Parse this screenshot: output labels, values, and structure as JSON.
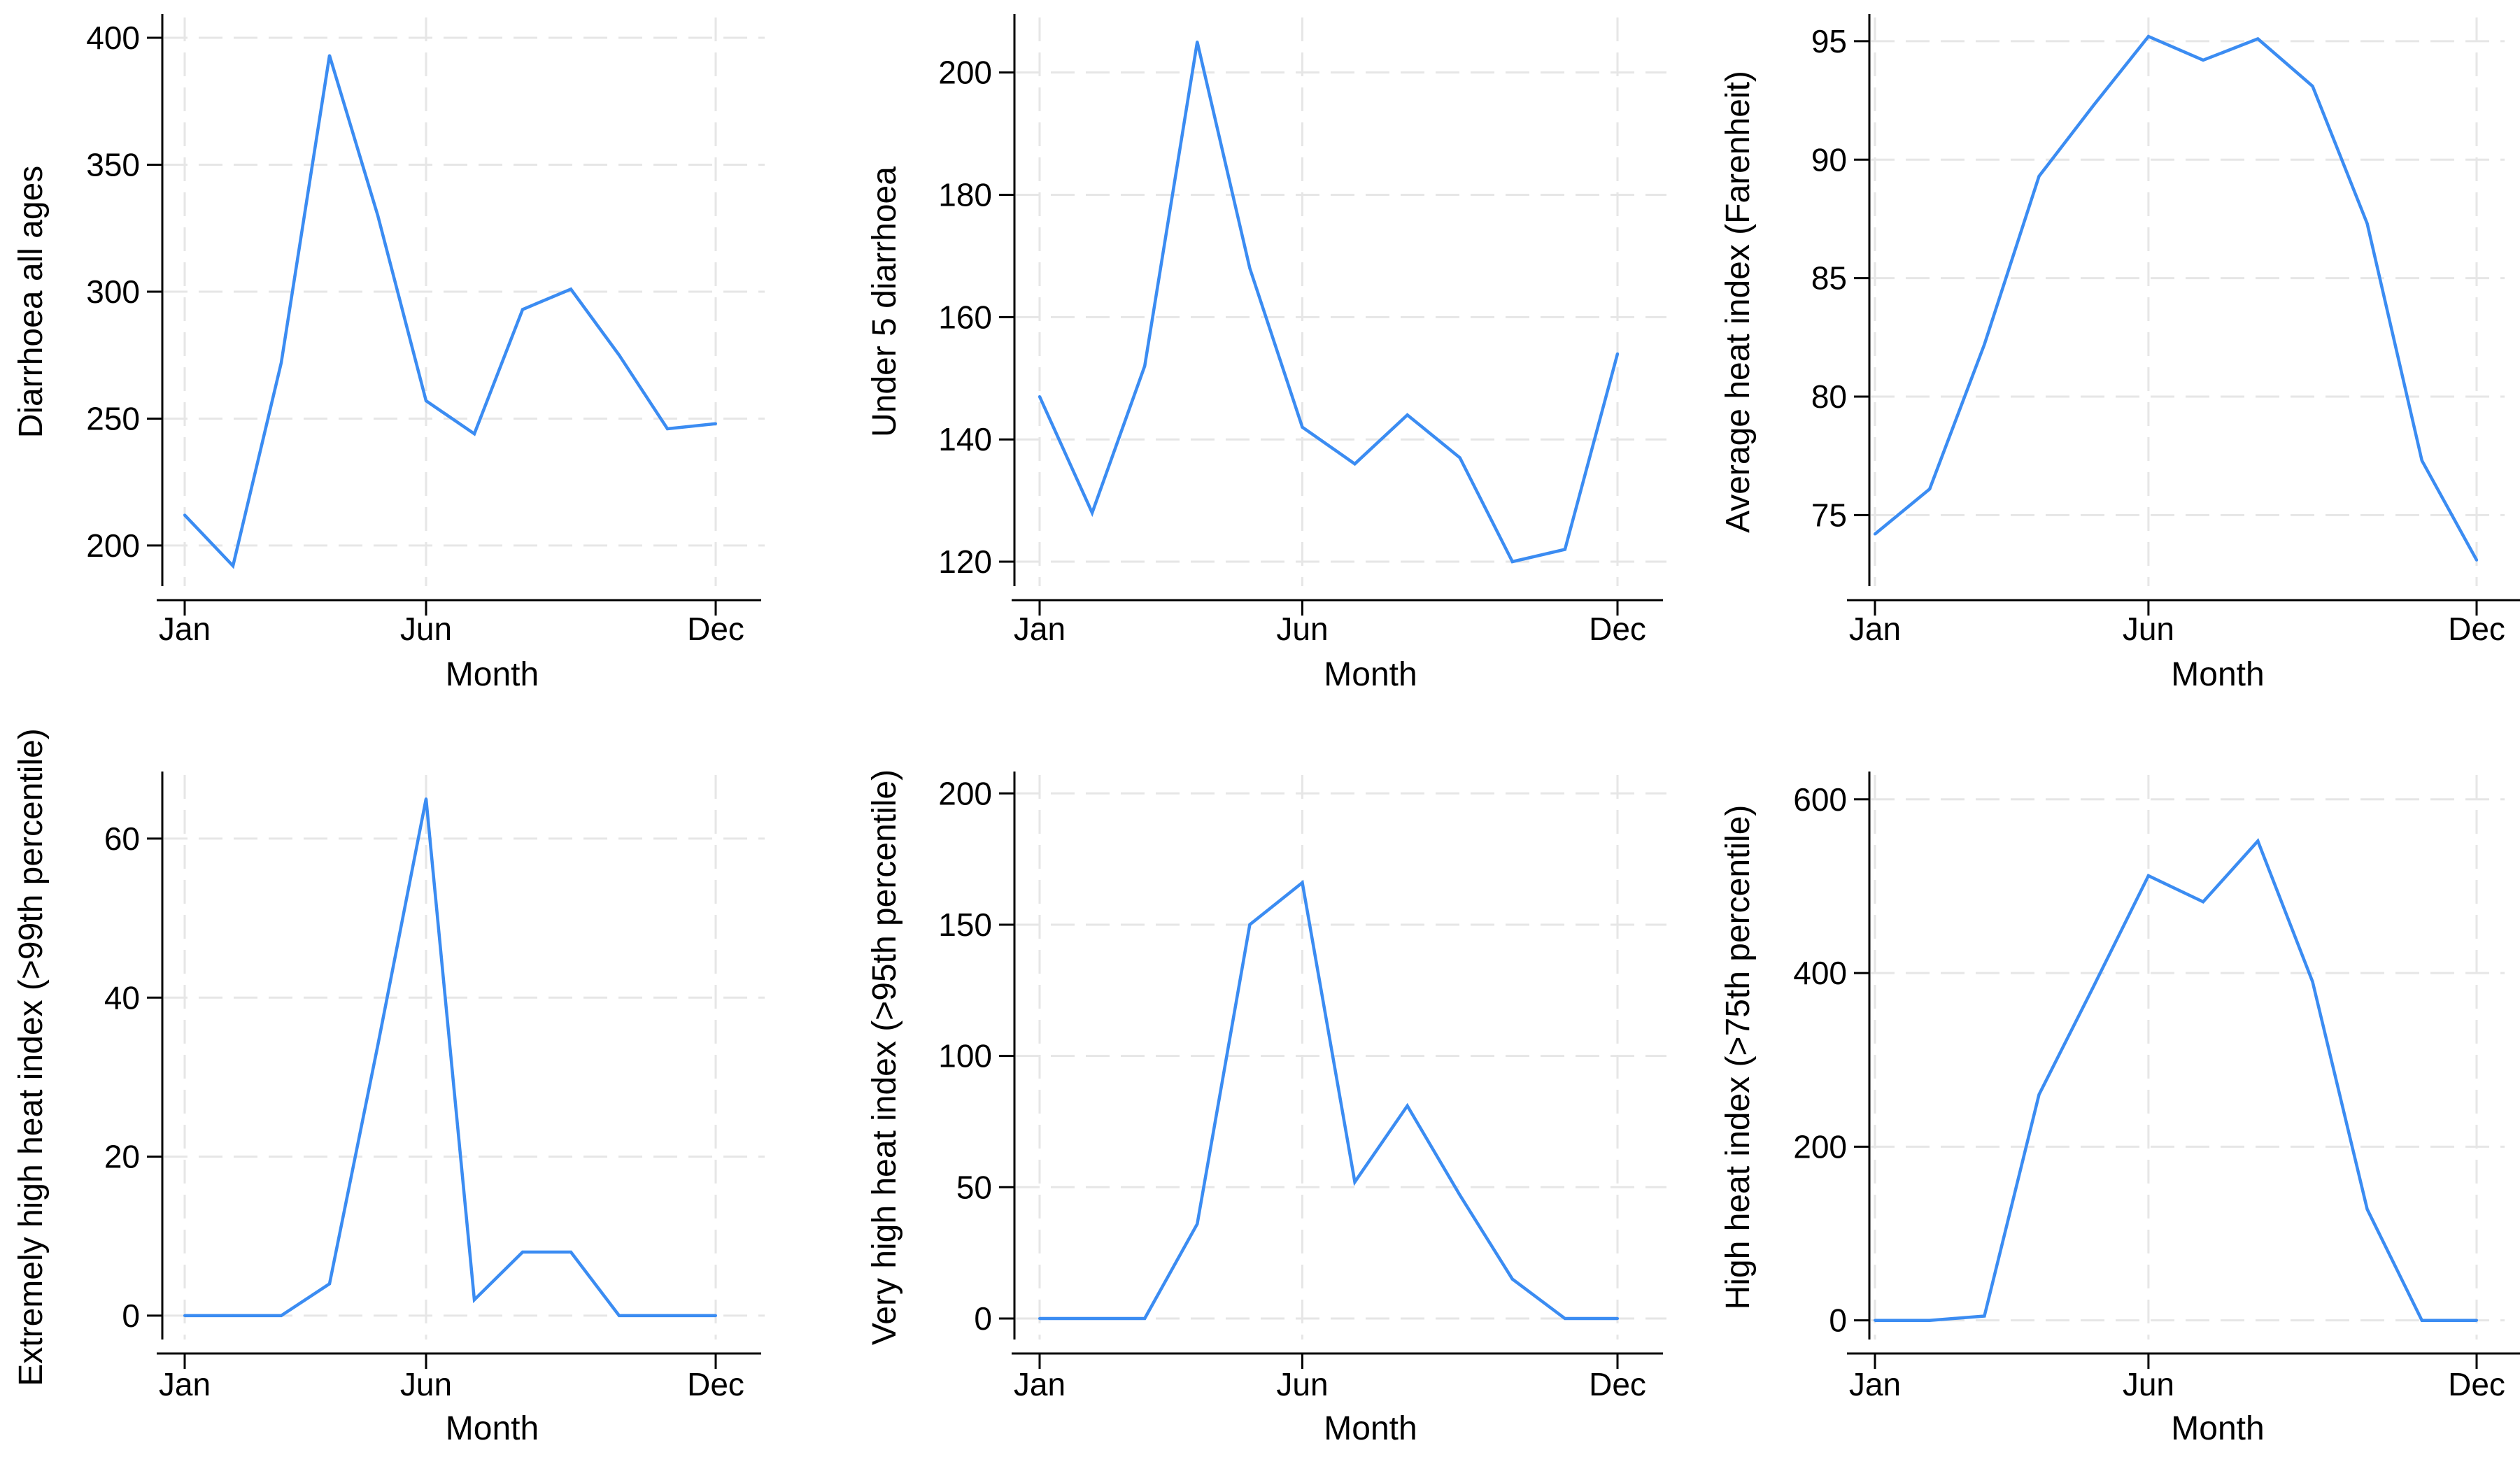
{
  "chart_data": [
    {
      "type": "line",
      "xlabel": "Month",
      "ylabel": "Diarrhoea all ages",
      "x": [
        1,
        2,
        3,
        4,
        5,
        6,
        7,
        8,
        9,
        10,
        11,
        12
      ],
      "x_ticks": [
        {
          "value": 1,
          "label": "Jan"
        },
        {
          "value": 6,
          "label": "Jun"
        },
        {
          "value": 12,
          "label": "Dec"
        }
      ],
      "y_ticks": [
        200,
        250,
        300,
        350,
        400
      ],
      "ylim": [
        184,
        408
      ],
      "grid": true,
      "series": [
        {
          "values": [
            212,
            192,
            272,
            393,
            330,
            257,
            244,
            293,
            301,
            275,
            246,
            248
          ]
        }
      ]
    },
    {
      "type": "line",
      "xlabel": "Month",
      "ylabel": "Under 5 diarrhoea",
      "x": [
        1,
        2,
        3,
        4,
        5,
        6,
        7,
        8,
        9,
        10,
        11,
        12
      ],
      "x_ticks": [
        {
          "value": 1,
          "label": "Jan"
        },
        {
          "value": 6,
          "label": "Jun"
        },
        {
          "value": 12,
          "label": "Dec"
        }
      ],
      "y_ticks": [
        120,
        140,
        160,
        180,
        200
      ],
      "ylim": [
        116,
        209
      ],
      "grid": true,
      "series": [
        {
          "values": [
            147,
            128,
            152,
            205,
            168,
            142,
            136,
            144,
            137,
            120,
            122,
            154
          ]
        }
      ]
    },
    {
      "type": "line",
      "xlabel": "Month",
      "ylabel": "Average heat index (Farenheit)",
      "x": [
        1,
        2,
        3,
        4,
        5,
        6,
        7,
        8,
        9,
        10,
        11,
        12
      ],
      "x_ticks": [
        {
          "value": 1,
          "label": "Jan"
        },
        {
          "value": 6,
          "label": "Jun"
        },
        {
          "value": 12,
          "label": "Dec"
        }
      ],
      "y_ticks": [
        75,
        80,
        85,
        90,
        95
      ],
      "ylim": [
        72,
        96
      ],
      "grid": true,
      "series": [
        {
          "values": [
            74.2,
            76.1,
            82.2,
            89.3,
            92.3,
            95.2,
            94.2,
            95.1,
            93.1,
            87.3,
            77.3,
            73.1
          ]
        }
      ]
    },
    {
      "type": "line",
      "xlabel": "Month",
      "ylabel": "Extremely high heat index (>99th percentile)",
      "x": [
        1,
        2,
        3,
        4,
        5,
        6,
        7,
        8,
        9,
        10,
        11,
        12
      ],
      "x_ticks": [
        {
          "value": 1,
          "label": "Jan"
        },
        {
          "value": 6,
          "label": "Jun"
        },
        {
          "value": 12,
          "label": "Dec"
        }
      ],
      "y_ticks": [
        0,
        20,
        40,
        60
      ],
      "ylim": [
        -3,
        68
      ],
      "grid": true,
      "series": [
        {
          "values": [
            0,
            0,
            0,
            4,
            34,
            65,
            2,
            8,
            8,
            0,
            0,
            0
          ]
        }
      ]
    },
    {
      "type": "line",
      "xlabel": "Month",
      "ylabel": "Very high heat index (>95th percentile)",
      "x": [
        1,
        2,
        3,
        4,
        5,
        6,
        7,
        8,
        9,
        10,
        11,
        12
      ],
      "x_ticks": [
        {
          "value": 1,
          "label": "Jan"
        },
        {
          "value": 6,
          "label": "Jun"
        },
        {
          "value": 12,
          "label": "Dec"
        }
      ],
      "y_ticks": [
        0,
        50,
        100,
        150,
        200
      ],
      "ylim": [
        -8,
        207
      ],
      "grid": true,
      "series": [
        {
          "values": [
            0,
            0,
            0,
            36,
            150,
            166,
            52,
            81,
            47,
            15,
            0,
            0
          ]
        }
      ]
    },
    {
      "type": "line",
      "xlabel": "Month",
      "ylabel": "High heat index (>75th percentile)",
      "x": [
        1,
        2,
        3,
        4,
        5,
        6,
        7,
        8,
        9,
        10,
        11,
        12
      ],
      "x_ticks": [
        {
          "value": 1,
          "label": "Jan"
        },
        {
          "value": 6,
          "label": "Jun"
        },
        {
          "value": 12,
          "label": "Dec"
        }
      ],
      "y_ticks": [
        0,
        200,
        400,
        600
      ],
      "ylim": [
        -22,
        628
      ],
      "grid": true,
      "series": [
        {
          "values": [
            0,
            0,
            5,
            260,
            385,
            512,
            482,
            552,
            390,
            128,
            0,
            0
          ]
        }
      ]
    }
  ],
  "colors": {
    "line": "#3b8cf2",
    "grid": "#e6e6e6",
    "axis": "#000000"
  }
}
